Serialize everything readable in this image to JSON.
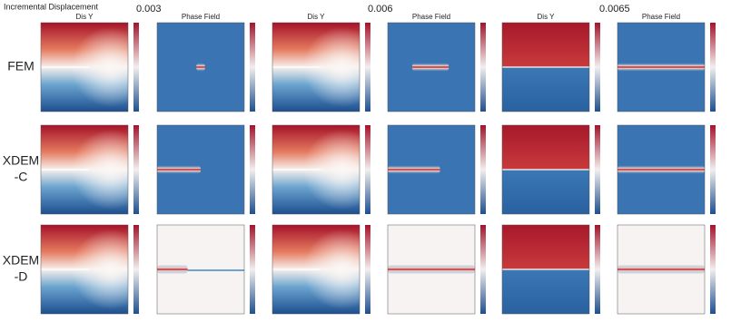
{
  "header": {
    "title": "Incremental Displacement",
    "increments": [
      "0.003",
      "0.006",
      "0.0065"
    ]
  },
  "columns": [
    "Dis Y",
    "Phase Field"
  ],
  "rows": [
    {
      "label": [
        "FEM"
      ]
    },
    {
      "label": [
        "XDEM",
        "-C"
      ]
    },
    {
      "label": [
        "XDEM",
        "-D"
      ]
    }
  ]
}
